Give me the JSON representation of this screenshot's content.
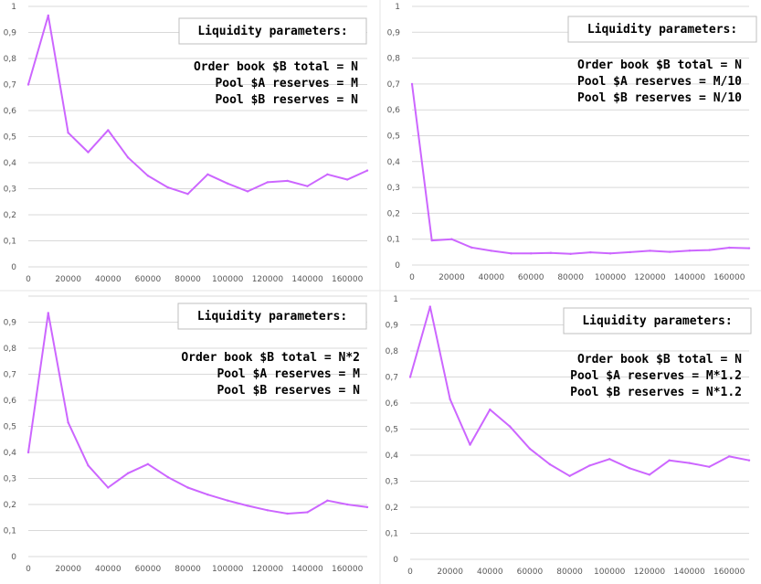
{
  "chart_data": [
    {
      "type": "line",
      "x": [
        0,
        10000,
        20000,
        30000,
        40000,
        50000,
        60000,
        70000,
        80000,
        90000,
        100000,
        110000,
        120000,
        130000,
        140000,
        150000,
        160000,
        170000
      ],
      "series": [
        {
          "values": [
            0.7,
            0.965,
            0.515,
            0.44,
            0.525,
            0.42,
            0.35,
            0.305,
            0.28,
            0.355,
            0.32,
            0.29,
            0.325,
            0.33,
            0.31,
            0.355,
            0.335,
            0.37
          ]
        }
      ],
      "xlim": [
        0,
        170000
      ],
      "ylim": [
        0,
        1
      ],
      "x_ticks": [
        "0",
        "20000",
        "40000",
        "60000",
        "80000",
        "100000",
        "120000",
        "140000",
        "160000"
      ],
      "y_ticks": [
        "0",
        "0,1",
        "0,2",
        "0,3",
        "0,4",
        "0,5",
        "0,6",
        "0,7",
        "0,8",
        "0,9",
        "1"
      ],
      "grid": true,
      "color": "#cc66ff",
      "annotation_title": "Liquidity parameters:",
      "annotations": [
        "Order book $B total = N",
        "Pool $A reserves = M",
        "Pool $B reserves = N"
      ]
    },
    {
      "type": "line",
      "x": [
        0,
        10000,
        20000,
        30000,
        40000,
        50000,
        60000,
        70000,
        80000,
        90000,
        100000,
        110000,
        120000,
        130000,
        140000,
        150000,
        160000,
        170000
      ],
      "series": [
        {
          "values": [
            0.7,
            0.095,
            0.1,
            0.068,
            0.055,
            0.045,
            0.045,
            0.047,
            0.043,
            0.049,
            0.045,
            0.05,
            0.055,
            0.051,
            0.056,
            0.058,
            0.067,
            0.065
          ]
        }
      ],
      "xlim": [
        0,
        170000
      ],
      "ylim": [
        0,
        1
      ],
      "x_ticks": [
        "0",
        "20000",
        "40000",
        "60000",
        "80000",
        "100000",
        "120000",
        "140000",
        "160000"
      ],
      "y_ticks": [
        "0",
        "0,1",
        "0,2",
        "0,3",
        "0,4",
        "0,5",
        "0,6",
        "0,7",
        "0,8",
        "0,9",
        "1"
      ],
      "grid": true,
      "color": "#cc66ff",
      "annotation_title": "Liquidity parameters:",
      "annotations": [
        "Order book $B total = N",
        "Pool $A reserves = M/10",
        "Pool $B reserves = N/10"
      ]
    },
    {
      "type": "line",
      "x": [
        0,
        10000,
        20000,
        30000,
        40000,
        50000,
        60000,
        70000,
        80000,
        90000,
        100000,
        110000,
        120000,
        130000,
        140000,
        150000,
        160000,
        170000
      ],
      "series": [
        {
          "values": [
            0.4,
            0.935,
            0.515,
            0.35,
            0.265,
            0.32,
            0.355,
            0.305,
            0.265,
            0.238,
            0.215,
            0.195,
            0.178,
            0.165,
            0.17,
            0.215,
            0.2,
            0.19
          ]
        }
      ],
      "xlim": [
        0,
        170000
      ],
      "ylim": [
        0,
        1
      ],
      "x_ticks": [
        "0",
        "20000",
        "40000",
        "60000",
        "80000",
        "100000",
        "120000",
        "140000",
        "160000"
      ],
      "y_ticks": [
        "0",
        "0,1",
        "0,2",
        "0,3",
        "0,4",
        "0,5",
        "0,6",
        "0,7",
        "0,8",
        "0,9",
        ""
      ],
      "grid": true,
      "color": "#cc66ff",
      "annotation_title": "Liquidity parameters:",
      "annotations": [
        "Order book $B total = N*2",
        "Pool $A reserves = M",
        "Pool $B reserves = N"
      ]
    },
    {
      "type": "line",
      "x": [
        0,
        10000,
        20000,
        30000,
        40000,
        50000,
        60000,
        70000,
        80000,
        90000,
        100000,
        110000,
        120000,
        130000,
        140000,
        150000,
        160000,
        170000
      ],
      "series": [
        {
          "values": [
            0.7,
            0.97,
            0.615,
            0.44,
            0.575,
            0.51,
            0.425,
            0.365,
            0.32,
            0.36,
            0.385,
            0.35,
            0.325,
            0.38,
            0.37,
            0.355,
            0.395,
            0.38
          ]
        }
      ],
      "xlim": [
        0,
        170000
      ],
      "ylim": [
        0,
        1
      ],
      "x_ticks": [
        "0",
        "20000",
        "40000",
        "60000",
        "80000",
        "100000",
        "120000",
        "140000",
        "160000"
      ],
      "y_ticks": [
        "0",
        "0,1",
        "0,2",
        "0,3",
        "0,4",
        "0,5",
        "0,6",
        "0,7",
        "0,8",
        "0,9",
        "1"
      ],
      "grid": true,
      "color": "#cc66ff",
      "annotation_title": "Liquidity parameters:",
      "annotations": [
        "Order book $B total = N",
        "Pool $A reserves = M*1.2",
        "Pool $B reserves = N*1.2"
      ]
    }
  ]
}
